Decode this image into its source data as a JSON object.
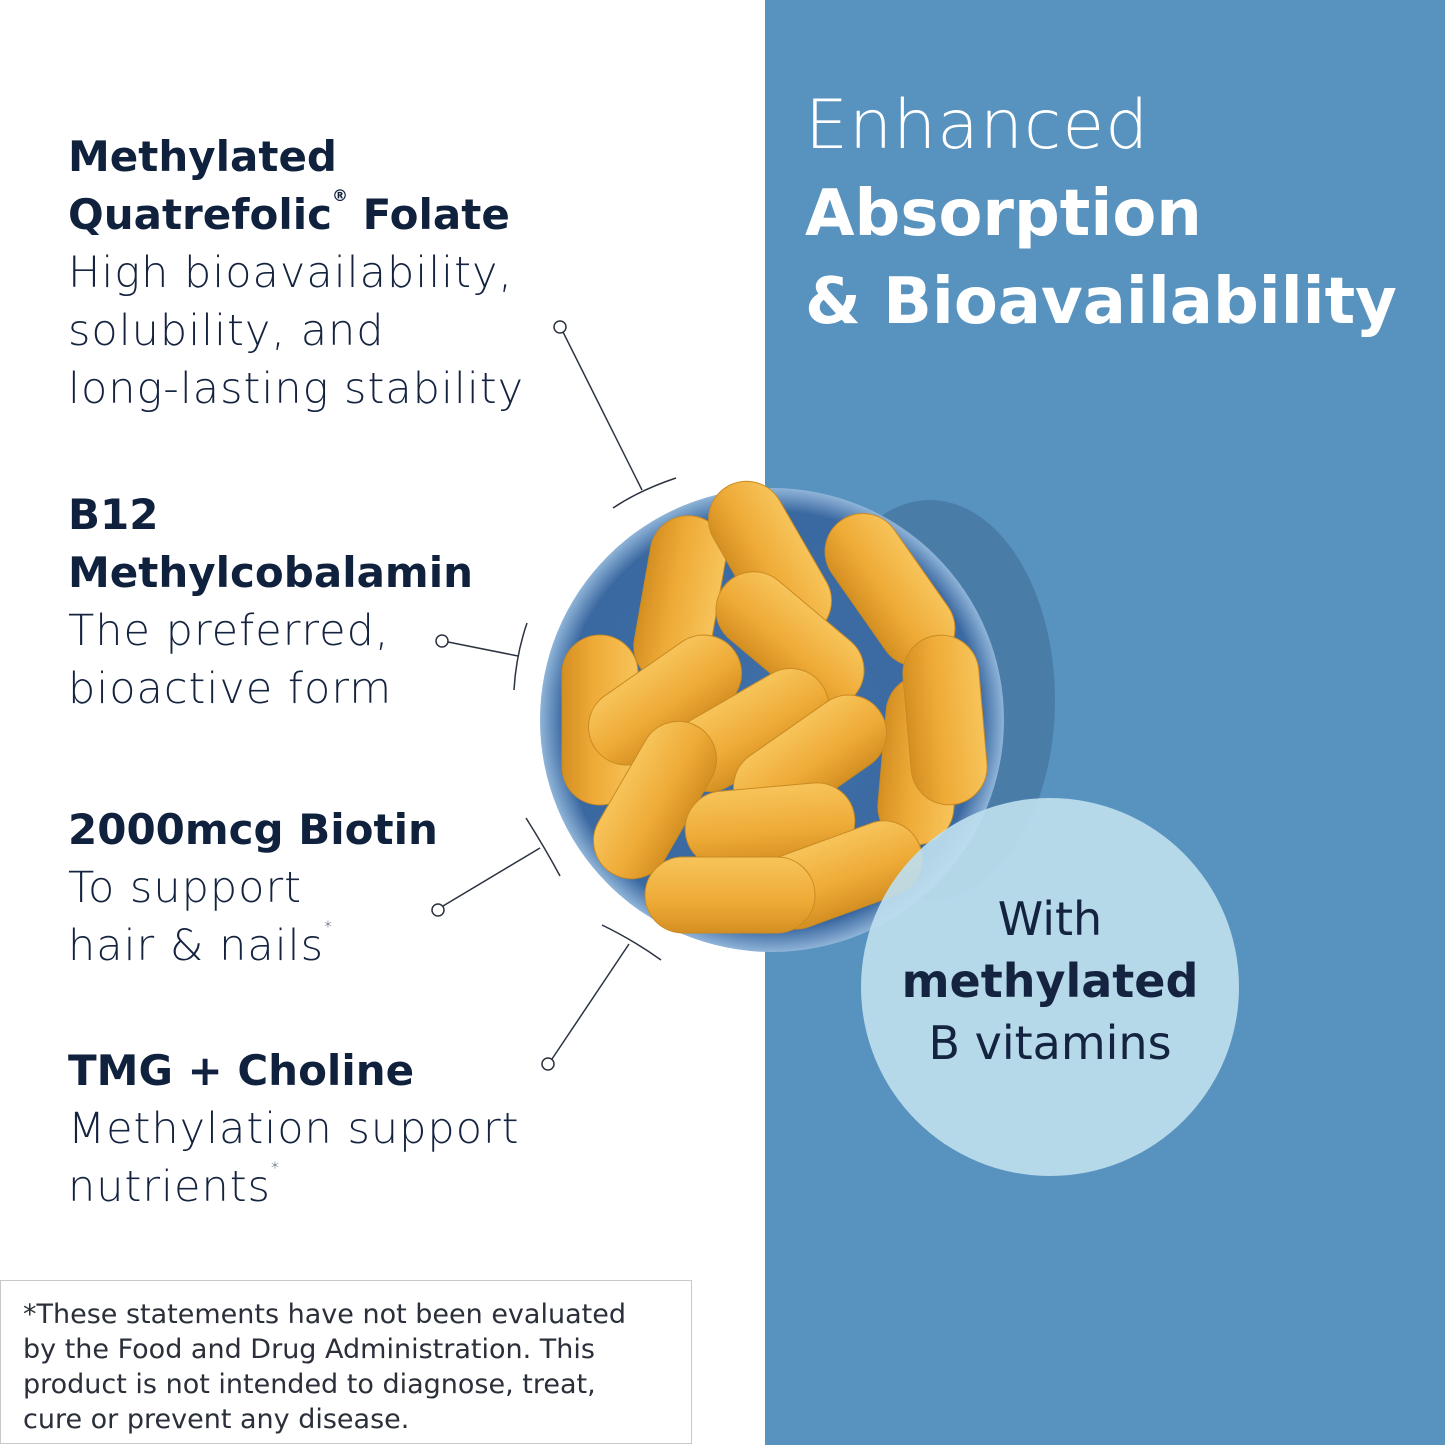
{
  "headline": {
    "line1": "Enhanced",
    "line2": "Absorption",
    "line3": "& Bioavailability"
  },
  "features": [
    {
      "title_line1": "Methylated",
      "title_line2": "Quatrefolic",
      "title_reg": "®",
      "title_line2_end": " Folate",
      "desc": [
        "High bioavailability,",
        "solubility, and",
        "long-lasting stability"
      ]
    },
    {
      "title_line1": "B12",
      "title_line2": "Methylcobalamin",
      "desc": [
        "The preferred,",
        "bioactive form"
      ]
    },
    {
      "title_line1": "2000mcg Biotin",
      "desc": [
        "To support",
        "hair & nails"
      ],
      "footnote_mark": "*"
    },
    {
      "title_line1": "TMG + Choline",
      "desc": [
        "Methylation support",
        "nutrients"
      ],
      "footnote_mark": "*"
    }
  ],
  "badge": {
    "line1": "With",
    "line2": "methylated",
    "line3": "B vitamins"
  },
  "disclaimer": [
    "*These statements have not been evaluated",
    "by the Food and Drug Administration. This",
    "product is not intended to diagnose, treat,",
    "cure or prevent any disease."
  ],
  "colors": {
    "panel": "#5893bf",
    "text": "#14233f",
    "badge": "#bedeee",
    "capsule": "#f0b23e"
  }
}
